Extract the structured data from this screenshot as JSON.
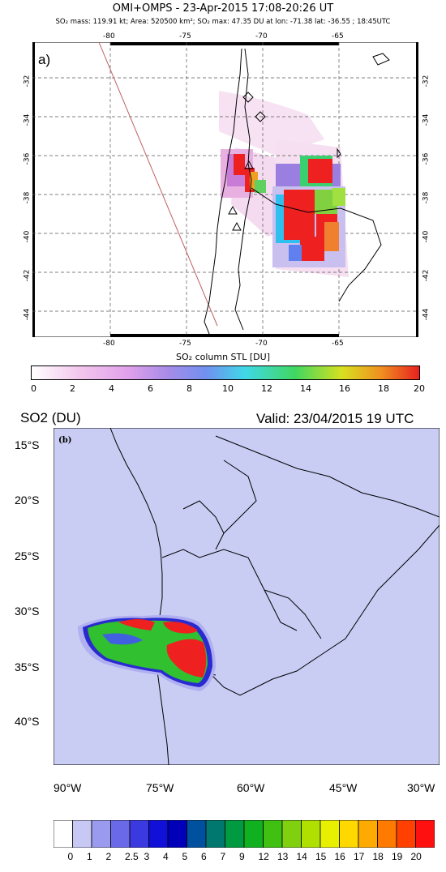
{
  "panel_a": {
    "title": "OMI+OMPS - 23-Apr-2015 17:08-20:26 UT",
    "subtitle": "SO₂ mass: 119.91 kt; Area: 520500 km²; SO₂ max: 47.35 DU at lon: -71.38 lat: -36.55 ; 18:45UTC",
    "label": "a)",
    "lon_ticks": [
      "-80",
      "-75",
      "-70",
      "-65"
    ],
    "lat_ticks": [
      "-32",
      "-34",
      "-36",
      "-38",
      "-40",
      "-42",
      "-44"
    ],
    "colorbar_title": "SO₂ column STL [DU]",
    "colorbar_ticks": [
      "0",
      "2",
      "4",
      "6",
      "8",
      "10",
      "12",
      "14",
      "16",
      "18",
      "20"
    ]
  },
  "panel_b": {
    "header_left": "SO2 (DU)",
    "header_right": "Valid: 23/04/2015  19 UTC",
    "label": "(b)",
    "lat_ticks": [
      "15°S",
      "20°S",
      "25°S",
      "30°S",
      "35°S",
      "40°S"
    ],
    "lon_ticks": [
      "90°W",
      "75°W",
      "60°W",
      "45°W",
      "30°W"
    ],
    "colorbar_ticks": [
      "0",
      "1",
      "2",
      "2.5",
      "3",
      "4",
      "5",
      "6",
      "7",
      "9",
      "12",
      "13",
      "14",
      "15",
      "16",
      "17",
      "18",
      "19",
      "20"
    ],
    "colorbar_colors": [
      "#ffffff",
      "#c8c8f5",
      "#9a9aee",
      "#6a6ae8",
      "#3a3ae0",
      "#1010d8",
      "#0000b8",
      "#0050a0",
      "#007870",
      "#009a40",
      "#10b020",
      "#40c010",
      "#80d010",
      "#b0e000",
      "#e8f000",
      "#ffd800",
      "#ffaa00",
      "#ff7a00",
      "#ff4000",
      "#ff1010"
    ],
    "ocean_color": "#c9cdf4"
  },
  "colors": {
    "plume_red": "#ee2020",
    "plume_green": "#30c030",
    "plume_blue": "#2030d0"
  }
}
